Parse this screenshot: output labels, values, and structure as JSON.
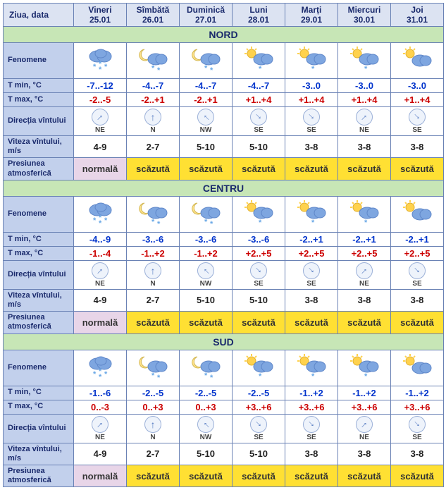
{
  "header": {
    "dayLabel": "Ziua, data",
    "days": [
      {
        "name": "Vineri",
        "date": "25.01"
      },
      {
        "name": "Sîmbătă",
        "date": "26.01"
      },
      {
        "name": "Duminică",
        "date": "27.01"
      },
      {
        "name": "Luni",
        "date": "28.01"
      },
      {
        "name": "Marți",
        "date": "29.01"
      },
      {
        "name": "Miercuri",
        "date": "30.01"
      },
      {
        "name": "Joi",
        "date": "31.01"
      }
    ]
  },
  "rowLabels": {
    "fenomene": "Fenomene",
    "tmin": "T min, °C",
    "tmax": "T max, °C",
    "dir": "Direcția vîntului",
    "speed": "Viteza vîntului, m/s",
    "pres": "Presiunea atmosferică"
  },
  "pressureValues": {
    "normal": "normală",
    "low": "scăzută"
  },
  "icons": {
    "snow": "snow",
    "moon_cloud_snow": "moon_cloud_snow",
    "sun_cloud_snow": "sun_cloud_snow",
    "sun_cloud": "sun_cloud"
  },
  "arrowRotation": {
    "NE": 45,
    "N": 0,
    "NW": -45,
    "SE": 135
  },
  "colors": {
    "border": "#6a82b5",
    "hdr_bg": "#dce3f2",
    "label_bg": "#c2d0ec",
    "region_bg": "#c7e6b6",
    "tmin": "#0033cc",
    "tmax": "#cc0000",
    "pres_normal_bg": "#e8d5e8",
    "pres_low_bg": "#ffe033",
    "cloud": "#7ea6e0",
    "cloud_dark": "#5f87c9",
    "snowflake": "#6aa8e6",
    "sun": "#ffd24d",
    "moon": "#ffe38a"
  },
  "regions": [
    {
      "name": "NORD",
      "phen": [
        "snow",
        "moon_cloud_snow",
        "moon_cloud_snow",
        "sun_cloud_snow",
        "sun_cloud_snow",
        "sun_cloud_snow",
        "sun_cloud"
      ],
      "tmin": [
        "-7..-12",
        "-4..-7",
        "-4..-7",
        "-4..-7",
        "-3..0",
        "-3..0",
        "-3..0"
      ],
      "tmax": [
        "-2..-5",
        "-2..+1",
        "-2..+1",
        "+1..+4",
        "+1..+4",
        "+1..+4",
        "+1..+4"
      ],
      "dir": [
        "NE",
        "N",
        "NW",
        "SE",
        "SE",
        "NE",
        "SE"
      ],
      "speed": [
        "4-9",
        "2-7",
        "5-10",
        "5-10",
        "3-8",
        "3-8",
        "3-8"
      ],
      "pres": [
        "normal",
        "low",
        "low",
        "low",
        "low",
        "low",
        "low"
      ]
    },
    {
      "name": "CENTRU",
      "phen": [
        "snow",
        "moon_cloud_snow",
        "moon_cloud_snow",
        "sun_cloud_snow",
        "sun_cloud_snow",
        "sun_cloud_snow",
        "sun_cloud"
      ],
      "tmin": [
        "-4..-9",
        "-3..-6",
        "-3..-6",
        "-3..-6",
        "-2..+1",
        "-2..+1",
        "-2..+1"
      ],
      "tmax": [
        "-1..-4",
        "-1..+2",
        "-1..+2",
        "+2..+5",
        "+2..+5",
        "+2..+5",
        "+2..+5"
      ],
      "dir": [
        "NE",
        "N",
        "NW",
        "SE",
        "SE",
        "NE",
        "SE"
      ],
      "speed": [
        "4-9",
        "2-7",
        "5-10",
        "5-10",
        "3-8",
        "3-8",
        "3-8"
      ],
      "pres": [
        "normal",
        "low",
        "low",
        "low",
        "low",
        "low",
        "low"
      ]
    },
    {
      "name": "SUD",
      "phen": [
        "snow",
        "moon_cloud_snow",
        "moon_cloud_snow",
        "sun_cloud_snow",
        "sun_cloud_snow",
        "sun_cloud_snow",
        "sun_cloud"
      ],
      "tmin": [
        "-1..-6",
        "-2..-5",
        "-2..-5",
        "-2..-5",
        "-1..+2",
        "-1..+2",
        "-1..+2"
      ],
      "tmax": [
        "0..-3",
        "0..+3",
        "0..+3",
        "+3..+6",
        "+3..+6",
        "+3..+6",
        "+3..+6"
      ],
      "dir": [
        "NE",
        "N",
        "NW",
        "SE",
        "SE",
        "NE",
        "SE"
      ],
      "speed": [
        "4-9",
        "2-7",
        "5-10",
        "5-10",
        "3-8",
        "3-8",
        "3-8"
      ],
      "pres": [
        "normal",
        "low",
        "low",
        "low",
        "low",
        "low",
        "low"
      ]
    }
  ]
}
